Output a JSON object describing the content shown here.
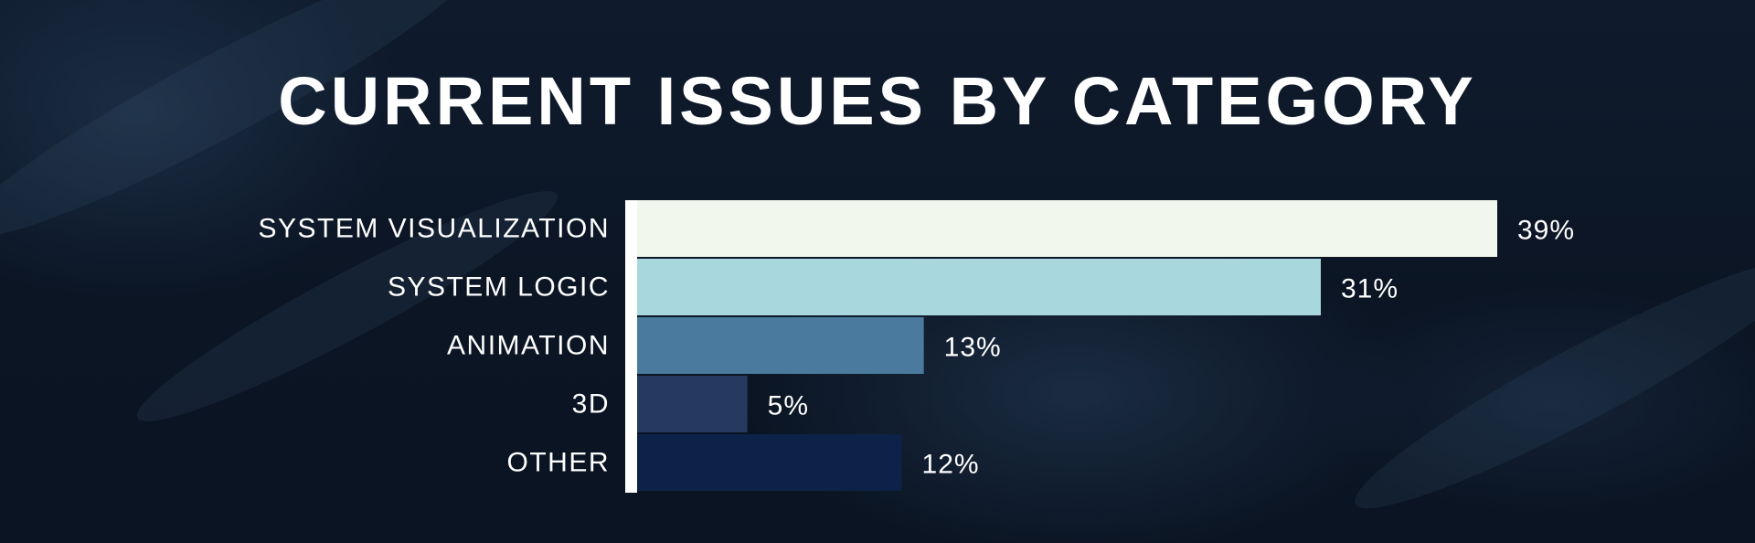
{
  "chart_data": {
    "type": "bar",
    "orientation": "horizontal",
    "title": "CURRENT ISSUES BY CATEGORY",
    "categories": [
      "SYSTEM VISUALIZATION",
      "SYSTEM LOGIC",
      "ANIMATION",
      "3D",
      "OTHER"
    ],
    "values": [
      39,
      31,
      13,
      5,
      12
    ],
    "value_labels": [
      "39%",
      "31%",
      "13%",
      "5%",
      "12%"
    ],
    "colors": [
      "#f1f7ec",
      "#a8d7de",
      "#4b7a9f",
      "#243a5e",
      "#0c2248"
    ],
    "axis_color": "#ffffff",
    "xlim": [
      0,
      39
    ],
    "grid": false,
    "legend": "none"
  }
}
